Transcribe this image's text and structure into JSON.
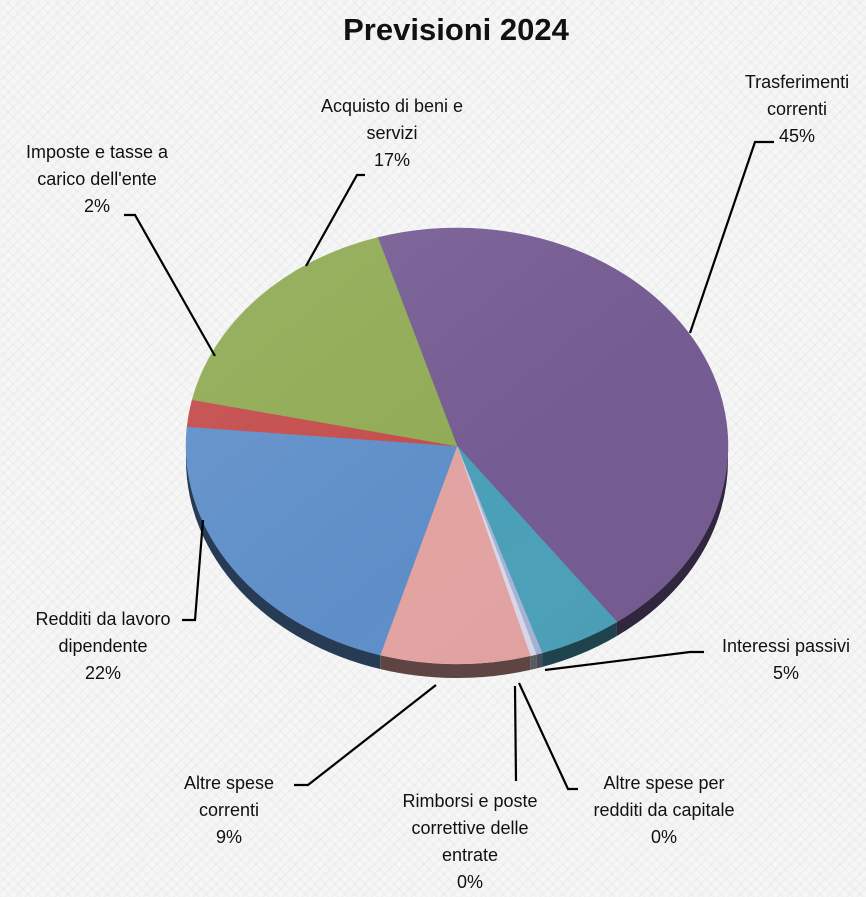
{
  "chart_data": {
    "type": "pie",
    "title": "Previsioni 2024",
    "series": [
      {
        "name": "",
        "slices": [
          {
            "label": [
              "Trasferimenti",
              "correnti"
            ],
            "pct_label": "45%",
            "value": 45,
            "color": "#745B92"
          },
          {
            "label": [
              "Interessi passivi"
            ],
            "pct_label": "5%",
            "value": 5,
            "color": "#4AA0B8"
          },
          {
            "label": [
              "Altre spese per",
              "redditi da capitale"
            ],
            "pct_label": "0%",
            "value": 0,
            "color": "#A5B3D6"
          },
          {
            "label": [
              "Rimborsi e poste",
              "correttive delle",
              "entrate"
            ],
            "pct_label": "0%",
            "value": 0,
            "color": "#D8D8E8"
          },
          {
            "label": [
              "Altre spese",
              "correnti"
            ],
            "pct_label": "9%",
            "value": 9,
            "color": "#E2A3A1"
          },
          {
            "label": [
              "Redditi da lavoro",
              "dipendente"
            ],
            "pct_label": "22%",
            "value": 22,
            "color": "#5E8EC8"
          },
          {
            "label": [
              "Imposte e tasse a",
              "carico dell'ente"
            ],
            "pct_label": "2%",
            "value": 2,
            "color": "#C44B4B"
          },
          {
            "label": [
              "Acquisto di beni e",
              "servizi"
            ],
            "pct_label": "17%",
            "value": 17,
            "color": "#8FAA53"
          }
        ]
      }
    ],
    "legend": "none",
    "grid": false
  }
}
